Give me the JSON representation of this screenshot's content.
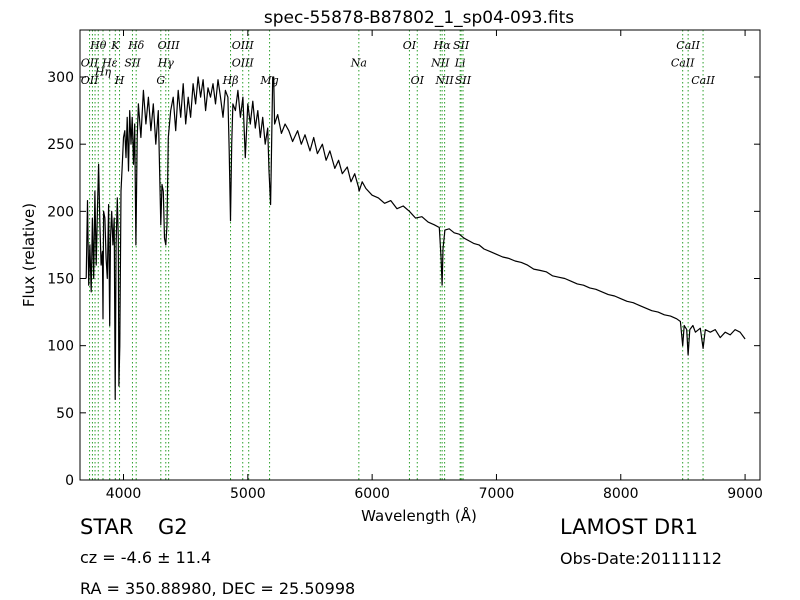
{
  "chart_data": {
    "type": "line",
    "title": "spec-55878-B87802_1_sp04-093.fits",
    "xlabel": "Wavelength (Å)",
    "ylabel": "Flux (relative)",
    "xlim": [
      3650,
      9120
    ],
    "ylim": [
      0,
      335
    ],
    "xticks": [
      4000,
      5000,
      6000,
      7000,
      8000,
      9000
    ],
    "yticks": [
      0,
      50,
      100,
      150,
      200,
      250,
      300
    ],
    "grid": false,
    "line_color": "#000000",
    "marker_color": "#2ca02c",
    "series": [
      {
        "points": [
          [
            3700,
            150
          ],
          [
            3710,
            208
          ],
          [
            3720,
            145
          ],
          [
            3730,
            175
          ],
          [
            3740,
            140
          ],
          [
            3750,
            195
          ],
          [
            3760,
            150
          ],
          [
            3770,
            215
          ],
          [
            3780,
            160
          ],
          [
            3790,
            200
          ],
          [
            3800,
            235
          ],
          [
            3810,
            190
          ],
          [
            3820,
            160
          ],
          [
            3830,
            170
          ],
          [
            3835,
            120
          ],
          [
            3840,
            200
          ],
          [
            3850,
            195
          ],
          [
            3860,
            165
          ],
          [
            3870,
            150
          ],
          [
            3880,
            205
          ],
          [
            3889,
            115
          ],
          [
            3895,
            180
          ],
          [
            3905,
            200
          ],
          [
            3915,
            175
          ],
          [
            3925,
            195
          ],
          [
            3933,
            60
          ],
          [
            3940,
            175
          ],
          [
            3950,
            210
          ],
          [
            3958,
            180
          ],
          [
            3963,
            70
          ],
          [
            3970,
            100
          ],
          [
            3980,
            215
          ],
          [
            3990,
            235
          ],
          [
            4000,
            255
          ],
          [
            4010,
            260
          ],
          [
            4020,
            240
          ],
          [
            4030,
            270
          ],
          [
            4040,
            230
          ],
          [
            4050,
            275
          ],
          [
            4060,
            250
          ],
          [
            4070,
            270
          ],
          [
            4080,
            235
          ],
          [
            4090,
            265
          ],
          [
            4100,
            175
          ],
          [
            4110,
            255
          ],
          [
            4120,
            280
          ],
          [
            4140,
            255
          ],
          [
            4160,
            290
          ],
          [
            4180,
            265
          ],
          [
            4200,
            285
          ],
          [
            4220,
            260
          ],
          [
            4240,
            280
          ],
          [
            4260,
            250
          ],
          [
            4280,
            275
          ],
          [
            4300,
            190
          ],
          [
            4310,
            220
          ],
          [
            4320,
            215
          ],
          [
            4330,
            180
          ],
          [
            4340,
            175
          ],
          [
            4350,
            190
          ],
          [
            4360,
            255
          ],
          [
            4380,
            275
          ],
          [
            4400,
            285
          ],
          [
            4420,
            260
          ],
          [
            4440,
            290
          ],
          [
            4460,
            270
          ],
          [
            4480,
            295
          ],
          [
            4500,
            265
          ],
          [
            4520,
            285
          ],
          [
            4540,
            270
          ],
          [
            4560,
            295
          ],
          [
            4580,
            280
          ],
          [
            4600,
            300
          ],
          [
            4620,
            285
          ],
          [
            4640,
            298
          ],
          [
            4660,
            275
          ],
          [
            4680,
            292
          ],
          [
            4700,
            285
          ],
          [
            4720,
            295
          ],
          [
            4740,
            280
          ],
          [
            4760,
            298
          ],
          [
            4780,
            285
          ],
          [
            4800,
            270
          ],
          [
            4820,
            290
          ],
          [
            4840,
            285
          ],
          [
            4850,
            245
          ],
          [
            4861,
            193
          ],
          [
            4870,
            250
          ],
          [
            4880,
            280
          ],
          [
            4900,
            275
          ],
          [
            4920,
            290
          ],
          [
            4940,
            270
          ],
          [
            4960,
            285
          ],
          [
            4980,
            240
          ],
          [
            5000,
            280
          ],
          [
            5020,
            265
          ],
          [
            5040,
            282
          ],
          [
            5060,
            262
          ],
          [
            5080,
            275
          ],
          [
            5100,
            255
          ],
          [
            5120,
            270
          ],
          [
            5140,
            250
          ],
          [
            5160,
            262
          ],
          [
            5170,
            230
          ],
          [
            5183,
            205
          ],
          [
            5190,
            240
          ],
          [
            5200,
            300
          ],
          [
            5208,
            300
          ],
          [
            5215,
            265
          ],
          [
            5240,
            272
          ],
          [
            5270,
            258
          ],
          [
            5300,
            265
          ],
          [
            5330,
            260
          ],
          [
            5360,
            252
          ],
          [
            5400,
            260
          ],
          [
            5430,
            250
          ],
          [
            5460,
            257
          ],
          [
            5500,
            245
          ],
          [
            5530,
            255
          ],
          [
            5560,
            243
          ],
          [
            5600,
            250
          ],
          [
            5630,
            238
          ],
          [
            5660,
            245
          ],
          [
            5700,
            232
          ],
          [
            5730,
            238
          ],
          [
            5760,
            228
          ],
          [
            5800,
            233
          ],
          [
            5830,
            222
          ],
          [
            5860,
            228
          ],
          [
            5890,
            218
          ],
          [
            5895,
            215
          ],
          [
            5920,
            222
          ],
          [
            5950,
            217
          ],
          [
            6000,
            212
          ],
          [
            6050,
            210
          ],
          [
            6100,
            206
          ],
          [
            6150,
            208
          ],
          [
            6200,
            202
          ],
          [
            6250,
            204
          ],
          [
            6300,
            200
          ],
          [
            6350,
            195
          ],
          [
            6400,
            196
          ],
          [
            6450,
            192
          ],
          [
            6500,
            190
          ],
          [
            6540,
            188
          ],
          [
            6555,
            165
          ],
          [
            6563,
            145
          ],
          [
            6570,
            172
          ],
          [
            6585,
            186
          ],
          [
            6620,
            187
          ],
          [
            6660,
            184
          ],
          [
            6700,
            183
          ],
          [
            6740,
            180
          ],
          [
            6780,
            178
          ],
          [
            6820,
            176
          ],
          [
            6860,
            175
          ],
          [
            6900,
            172
          ],
          [
            6950,
            170
          ],
          [
            7000,
            168
          ],
          [
            7050,
            166
          ],
          [
            7100,
            165
          ],
          [
            7150,
            163
          ],
          [
            7200,
            162
          ],
          [
            7250,
            160
          ],
          [
            7300,
            157
          ],
          [
            7350,
            156
          ],
          [
            7400,
            155
          ],
          [
            7450,
            152
          ],
          [
            7500,
            151
          ],
          [
            7550,
            150
          ],
          [
            7600,
            148
          ],
          [
            7650,
            146
          ],
          [
            7700,
            145
          ],
          [
            7750,
            143
          ],
          [
            7800,
            142
          ],
          [
            7850,
            140
          ],
          [
            7900,
            138
          ],
          [
            7950,
            137
          ],
          [
            8000,
            135
          ],
          [
            8050,
            133
          ],
          [
            8100,
            132
          ],
          [
            8150,
            130
          ],
          [
            8200,
            128
          ],
          [
            8250,
            126
          ],
          [
            8300,
            125
          ],
          [
            8350,
            123
          ],
          [
            8400,
            122
          ],
          [
            8450,
            120
          ],
          [
            8480,
            118
          ],
          [
            8498,
            100
          ],
          [
            8510,
            115
          ],
          [
            8530,
            112
          ],
          [
            8542,
            93
          ],
          [
            8555,
            112
          ],
          [
            8580,
            115
          ],
          [
            8600,
            110
          ],
          [
            8640,
            113
          ],
          [
            8662,
            98
          ],
          [
            8680,
            112
          ],
          [
            8720,
            110
          ],
          [
            8760,
            112
          ],
          [
            8800,
            106
          ],
          [
            8840,
            110
          ],
          [
            8880,
            108
          ],
          [
            8920,
            112
          ],
          [
            8960,
            110
          ],
          [
            9000,
            105
          ]
        ]
      }
    ],
    "annotations": [
      {
        "text": "Hθ",
        "x": 3797,
        "row": 0
      },
      {
        "text": "K",
        "x": 3934,
        "row": 0
      },
      {
        "text": "Hδ",
        "x": 4102,
        "row": 0
      },
      {
        "text": "OIII",
        "x": 4363,
        "row": 0
      },
      {
        "text": "OII",
        "x": 3727,
        "row": 1
      },
      {
        "text": "Hε",
        "x": 3890,
        "row": 1
      },
      {
        "text": "SII",
        "x": 4072,
        "row": 1
      },
      {
        "text": "Hγ",
        "x": 4340,
        "row": 1
      },
      {
        "text": "OIII",
        "x": 4959,
        "row": 0
      },
      {
        "text": "OI",
        "x": 6300,
        "row": 0
      },
      {
        "text": "Hα",
        "x": 6563,
        "row": 0
      },
      {
        "text": "SII",
        "x": 6716,
        "row": 0
      },
      {
        "text": "CaII",
        "x": 8542,
        "row": 0
      },
      {
        "text": "OIII",
        "x": 4959,
        "row": 1
      },
      {
        "text": "Na",
        "x": 5893,
        "row": 1
      },
      {
        "text": "NII",
        "x": 6548,
        "row": 1
      },
      {
        "text": "Li",
        "x": 6708,
        "row": 1
      },
      {
        "text": "CaII",
        "x": 8498,
        "row": 1
      },
      {
        "text": "OII",
        "x": 3727,
        "row": 2
      },
      {
        "text": "Hη",
        "x": 3835,
        "row": 1.5
      },
      {
        "text": "H",
        "x": 3968,
        "row": 2
      },
      {
        "text": "G",
        "x": 4300,
        "row": 2
      },
      {
        "text": "Hβ",
        "x": 4861,
        "row": 2
      },
      {
        "text": "Mg",
        "x": 5175,
        "row": 2
      },
      {
        "text": "OI",
        "x": 6363,
        "row": 2
      },
      {
        "text": "NII",
        "x": 6583,
        "row": 2
      },
      {
        "text": "SII",
        "x": 6731,
        "row": 2
      },
      {
        "text": "CaII",
        "x": 8662,
        "row": 2
      }
    ],
    "line_markers": [
      3727,
      3750,
      3771,
      3797,
      3835,
      3889,
      3934,
      3968,
      4072,
      4102,
      4300,
      4340,
      4363,
      4861,
      4959,
      5007,
      5175,
      5893,
      6300,
      6363,
      6548,
      6563,
      6583,
      6708,
      6716,
      6731,
      8498,
      8542,
      8662
    ]
  },
  "info": {
    "object_class": "STAR",
    "subclass": "G2",
    "cz": "cz = -4.6  ± 11.4",
    "coords": "RA = 350.88980, DEC = 25.50998",
    "survey": "LAMOST DR1",
    "obs_date": "Obs-Date:20111112"
  }
}
